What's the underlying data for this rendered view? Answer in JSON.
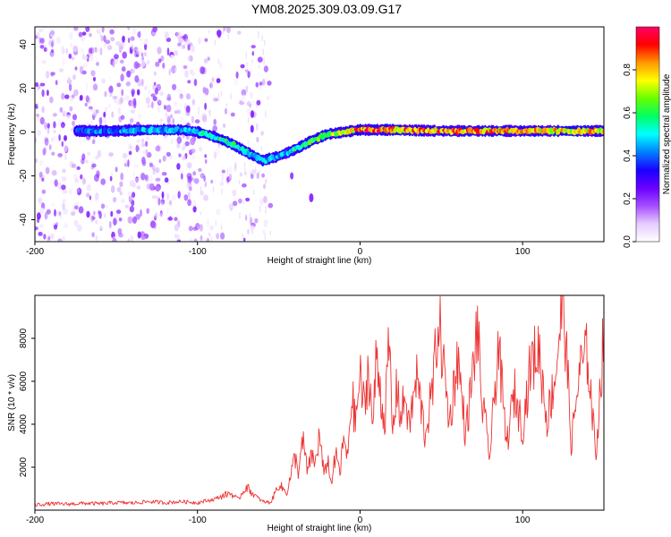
{
  "figure": {
    "title": "YM08.2025.309.03.09.G17"
  },
  "chart_data": [
    {
      "type": "heatmap",
      "xlabel": "Height of straight line (km)",
      "ylabel": "Frequency (Hz)",
      "xlim": [
        -200,
        150
      ],
      "ylim": [
        -50,
        48
      ],
      "x_ticks": [
        -200,
        -100,
        0,
        100
      ],
      "y_ticks": [
        -40,
        -20,
        0,
        20,
        40
      ],
      "grid": false,
      "colorbar": {
        "label": "Normalized spectral amplitude",
        "range": [
          0,
          1
        ],
        "ticks": [
          0,
          0.2,
          0.4,
          0.6,
          0.8
        ],
        "tick_labels": [
          "0.0",
          "0.2",
          "0.4",
          "0.6",
          "0.8"
        ],
        "colormap": [
          "#ffffff",
          "#e6ccff",
          "#a44dff",
          "#6a00ff",
          "#1a00ff",
          "#0080ff",
          "#00ffff",
          "#00ff66",
          "#66ff00",
          "#ffff00",
          "#ff9900",
          "#ff0000",
          "#ff0066"
        ]
      },
      "ridge": {
        "x": [
          -175,
          -150,
          -130,
          -110,
          -100,
          -90,
          -80,
          -70,
          -60,
          -50,
          -40,
          -30,
          -20,
          -10,
          0,
          10,
          20,
          50,
          100,
          150
        ],
        "y": [
          0.5,
          0.5,
          1,
          1,
          0,
          -2,
          -5,
          -9,
          -13,
          -11,
          -8,
          -4,
          -1,
          0,
          1,
          1,
          1,
          0.5,
          0.5,
          0.5
        ],
        "amplitude": [
          0.4,
          0.45,
          0.5,
          0.45,
          0.55,
          0.6,
          0.6,
          0.55,
          0.5,
          0.45,
          0.6,
          0.65,
          0.7,
          0.8,
          0.9,
          0.95,
          0.9,
          0.9,
          0.85,
          0.8
        ]
      },
      "noise_region": {
        "x": [
          -200,
          -55
        ],
        "amplitude": 0.2
      },
      "isolated_blob": {
        "x": -30,
        "y": -30,
        "amplitude": 0.2
      }
    },
    {
      "type": "line",
      "xlabel": "Height of straight line (km)",
      "ylabel": "SNR (10 * v/v)",
      "xlim": [
        -200,
        150
      ],
      "ylim": [
        0,
        10000
      ],
      "x_ticks": [
        -200,
        -100,
        0,
        100
      ],
      "y_ticks": [
        2000,
        4000,
        6000,
        8000
      ],
      "grid": false,
      "series": [
        {
          "color": "#ee3333",
          "x": [
            -200,
            -190,
            -180,
            -170,
            -160,
            -150,
            -140,
            -130,
            -120,
            -110,
            -100,
            -90,
            -80,
            -75,
            -70,
            -65,
            -60,
            -55,
            -50,
            -45,
            -40,
            -38,
            -35,
            -32,
            -30,
            -28,
            -25,
            -22,
            -20,
            -18,
            -15,
            -12,
            -10,
            -8,
            -5,
            -3,
            0,
            3,
            5,
            8,
            10,
            15,
            18,
            20,
            23,
            25,
            28,
            30,
            35,
            40,
            45,
            48,
            50,
            55,
            60,
            65,
            70,
            72,
            75,
            80,
            85,
            90,
            95,
            100,
            105,
            110,
            115,
            120,
            123,
            125,
            130,
            135,
            140,
            145,
            150
          ],
          "y": [
            250,
            300,
            280,
            320,
            300,
            350,
            330,
            400,
            350,
            400,
            350,
            500,
            800,
            500,
            1100,
            700,
            400,
            350,
            1200,
            800,
            2500,
            1800,
            3200,
            1600,
            2800,
            2000,
            3500,
            1500,
            2500,
            1200,
            2500,
            1800,
            3500,
            2200,
            5500,
            4000,
            6200,
            4500,
            6800,
            3800,
            7200,
            4000,
            7800,
            3500,
            6000,
            4200,
            5500,
            3800,
            6200,
            3500,
            5800,
            8900,
            7800,
            4000,
            7200,
            3500,
            6800,
            8600,
            5000,
            2500,
            7800,
            3000,
            5500,
            3800,
            6800,
            7500,
            4200,
            6200,
            8500,
            10000,
            3000,
            6500,
            7300,
            2500,
            8300
          ]
        }
      ]
    }
  ]
}
